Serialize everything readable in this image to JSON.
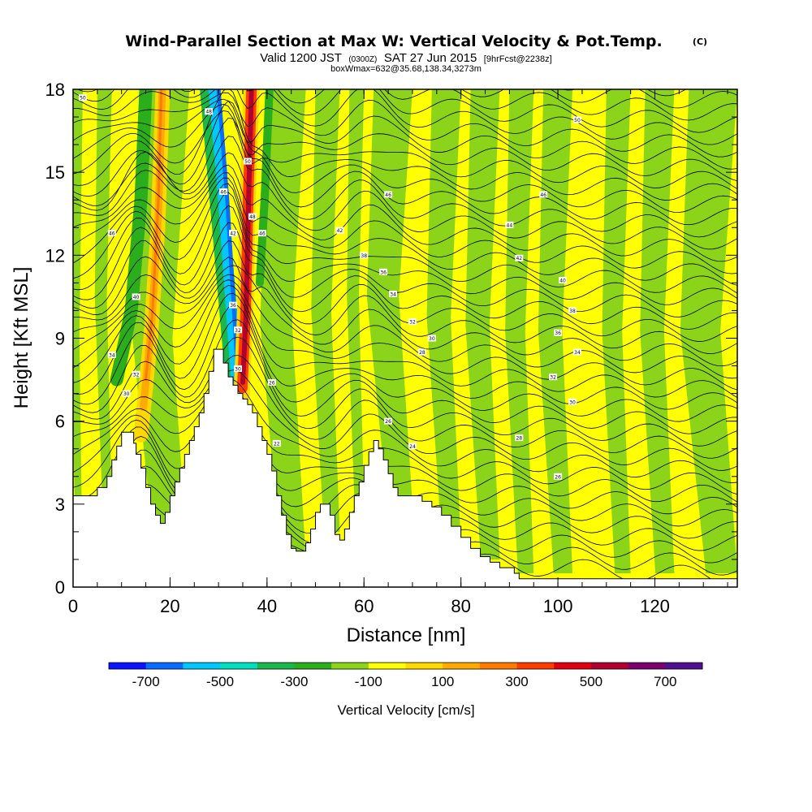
{
  "chart_data": {
    "type": "heatmap",
    "title": "Wind-Parallel Section at Max W: Vertical Velocity & Pot.Temp.",
    "copyright": "(C)",
    "subtitle": {
      "valid_prefix": "Valid 1200 JST",
      "utc": "(0300Z)",
      "date": "SAT 27 Jun 2015",
      "forecast": "[9hrFcst@2238z]"
    },
    "info_line": "boxWmax=632@35.68,138.34,3273m",
    "xlabel": "Distance [nm]",
    "ylabel": "Height [Kft MSL]",
    "xlim": [
      0,
      137
    ],
    "ylim": [
      0,
      18
    ],
    "x_ticks": [
      "0",
      "20",
      "40",
      "60",
      "80",
      "100",
      "120"
    ],
    "y_ticks": [
      "0",
      "3",
      "6",
      "9",
      "12",
      "15",
      "18"
    ],
    "colorbar": {
      "label": "Vertical Velocity [cm/s]",
      "tick_labels": [
        "-700",
        "-500",
        "-300",
        "-100",
        "100",
        "300",
        "500",
        "700"
      ],
      "colors": [
        "#0a14ff",
        "#0a6cff",
        "#00c8ff",
        "#00e0c0",
        "#1ab84a",
        "#2aae1c",
        "#8cd41a",
        "#ffff00",
        "#ffd800",
        "#ffaa00",
        "#ff7a00",
        "#ff3c00",
        "#e00010",
        "#b00030",
        "#7a0070",
        "#501090"
      ]
    },
    "max_w_location_nm": 36,
    "terrain_kft": [
      [
        0,
        3.3
      ],
      [
        3,
        3.3
      ],
      [
        5,
        3.6
      ],
      [
        7,
        4.0
      ],
      [
        8,
        4.6
      ],
      [
        9,
        5.1
      ],
      [
        10,
        5.6
      ],
      [
        12,
        5.6
      ],
      [
        12.5,
        5.2
      ],
      [
        13,
        4.8
      ],
      [
        14,
        4.3
      ],
      [
        15,
        3.6
      ],
      [
        16,
        3.0
      ],
      [
        17,
        2.6
      ],
      [
        18,
        2.3
      ],
      [
        19,
        2.7
      ],
      [
        20,
        3.3
      ],
      [
        21,
        3.8
      ],
      [
        22,
        4.3
      ],
      [
        23,
        4.8
      ],
      [
        24,
        5.3
      ],
      [
        25,
        5.8
      ],
      [
        26,
        6.3
      ],
      [
        27,
        7.0
      ],
      [
        28,
        7.8
      ],
      [
        29,
        8.6
      ],
      [
        30,
        8.6
      ],
      [
        31,
        8.1
      ],
      [
        32,
        7.6
      ],
      [
        33,
        7.3
      ],
      [
        34,
        7.0
      ],
      [
        35,
        6.8
      ],
      [
        36,
        6.6
      ],
      [
        37,
        6.3
      ],
      [
        38,
        5.8
      ],
      [
        39,
        5.3
      ],
      [
        40,
        4.8
      ],
      [
        41,
        4.2
      ],
      [
        42,
        3.3
      ],
      [
        43,
        2.6
      ],
      [
        44,
        1.9
      ],
      [
        45,
        1.4
      ],
      [
        46,
        1.3
      ],
      [
        47,
        1.3
      ],
      [
        48,
        1.6
      ],
      [
        49,
        2.1
      ],
      [
        50,
        2.7
      ],
      [
        51,
        3.0
      ],
      [
        52,
        3.0
      ],
      [
        53,
        2.6
      ],
      [
        54,
        1.9
      ],
      [
        55,
        1.7
      ],
      [
        56,
        2.1
      ],
      [
        57,
        2.7
      ],
      [
        58,
        3.3
      ],
      [
        59,
        3.8
      ],
      [
        60,
        4.4
      ],
      [
        61,
        4.9
      ],
      [
        62,
        5.3
      ],
      [
        63,
        5.0
      ],
      [
        64,
        4.6
      ],
      [
        65,
        4.1
      ],
      [
        66,
        3.6
      ],
      [
        67,
        3.3
      ],
      [
        70,
        3.3
      ],
      [
        72,
        3.1
      ],
      [
        74,
        2.9
      ],
      [
        76,
        2.6
      ],
      [
        78,
        2.2
      ],
      [
        80,
        1.8
      ],
      [
        82,
        1.4
      ],
      [
        84,
        1.1
      ],
      [
        86,
        0.9
      ],
      [
        88,
        0.7
      ],
      [
        91,
        0.5
      ],
      [
        92,
        0.3
      ],
      [
        137,
        0.3
      ]
    ],
    "isentrope_labels": [
      {
        "x": 2,
        "y": 17.7,
        "text": "50"
      },
      {
        "x": 28,
        "y": 17.2,
        "text": "48"
      },
      {
        "x": 104,
        "y": 16.9,
        "text": "50"
      },
      {
        "x": 65,
        "y": 14.2,
        "text": "46"
      },
      {
        "x": 97,
        "y": 14.2,
        "text": "46"
      },
      {
        "x": 55,
        "y": 12.9,
        "text": "42"
      },
      {
        "x": 90,
        "y": 13.1,
        "text": "44"
      },
      {
        "x": 60,
        "y": 12.0,
        "text": "38"
      },
      {
        "x": 92,
        "y": 11.9,
        "text": "42"
      },
      {
        "x": 64,
        "y": 11.4,
        "text": "36"
      },
      {
        "x": 101,
        "y": 11.1,
        "text": "40"
      },
      {
        "x": 66,
        "y": 10.6,
        "text": "34"
      },
      {
        "x": 103,
        "y": 10.0,
        "text": "38"
      },
      {
        "x": 70,
        "y": 9.6,
        "text": "32"
      },
      {
        "x": 100,
        "y": 9.2,
        "text": "36"
      },
      {
        "x": 74,
        "y": 9.0,
        "text": "30"
      },
      {
        "x": 104,
        "y": 8.5,
        "text": "34"
      },
      {
        "x": 72,
        "y": 8.5,
        "text": "28"
      },
      {
        "x": 99,
        "y": 7.6,
        "text": "32"
      },
      {
        "x": 65,
        "y": 6.0,
        "text": "26"
      },
      {
        "x": 103,
        "y": 6.7,
        "text": "30"
      },
      {
        "x": 92,
        "y": 5.4,
        "text": "28"
      },
      {
        "x": 70,
        "y": 5.1,
        "text": "24"
      },
      {
        "x": 100,
        "y": 4.0,
        "text": "26"
      },
      {
        "x": 42,
        "y": 5.2,
        "text": "22"
      },
      {
        "x": 8,
        "y": 12.8,
        "text": "46"
      },
      {
        "x": 13,
        "y": 10.5,
        "text": "40"
      },
      {
        "x": 8,
        "y": 8.4,
        "text": "34"
      },
      {
        "x": 13,
        "y": 7.7,
        "text": "32"
      },
      {
        "x": 11,
        "y": 7.0,
        "text": "30"
      },
      {
        "x": 31,
        "y": 14.3,
        "text": "46"
      },
      {
        "x": 33,
        "y": 12.8,
        "text": "42"
      },
      {
        "x": 36,
        "y": 15.4,
        "text": "50"
      },
      {
        "x": 37,
        "y": 13.4,
        "text": "48"
      },
      {
        "x": 39,
        "y": 12.8,
        "text": "46"
      },
      {
        "x": 33,
        "y": 10.2,
        "text": "36"
      },
      {
        "x": 34,
        "y": 9.3,
        "text": "32"
      },
      {
        "x": 34,
        "y": 7.9,
        "text": "30"
      },
      {
        "x": 41,
        "y": 7.4,
        "text": "26"
      }
    ]
  }
}
